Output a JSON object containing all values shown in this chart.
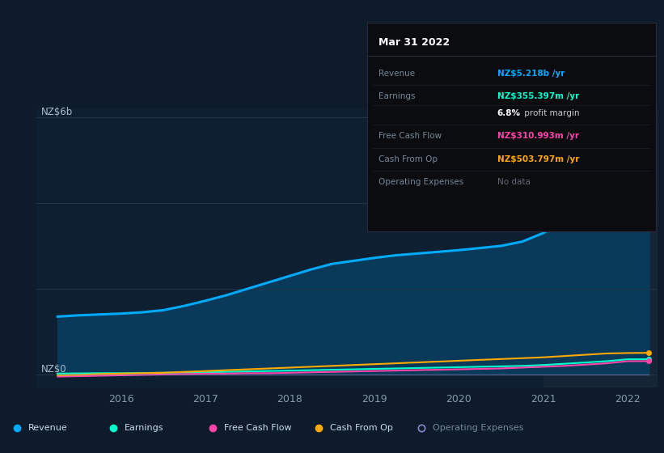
{
  "bg_color": "#0d1b2a",
  "plot_bg_color": "#0d1f30",
  "grid_color": "#1e3448",
  "highlight_bg": "#162535",
  "xlabel_color": "#8899aa",
  "years": [
    2015.25,
    2015.5,
    2015.75,
    2016.0,
    2016.25,
    2016.5,
    2016.75,
    2017.0,
    2017.25,
    2017.5,
    2017.75,
    2018.0,
    2018.25,
    2018.5,
    2018.75,
    2019.0,
    2019.25,
    2019.5,
    2019.75,
    2020.0,
    2020.25,
    2020.5,
    2020.75,
    2021.0,
    2021.25,
    2021.5,
    2021.75,
    2022.0,
    2022.25
  ],
  "revenue": [
    1.35,
    1.38,
    1.4,
    1.42,
    1.45,
    1.5,
    1.6,
    1.72,
    1.85,
    2.0,
    2.15,
    2.3,
    2.45,
    2.58,
    2.65,
    2.72,
    2.78,
    2.82,
    2.86,
    2.9,
    2.95,
    3.0,
    3.1,
    3.3,
    3.6,
    4.1,
    4.7,
    5.2,
    5.218
  ],
  "earnings": [
    0.02,
    0.025,
    0.03,
    0.03,
    0.035,
    0.04,
    0.045,
    0.05,
    0.06,
    0.07,
    0.08,
    0.09,
    0.1,
    0.11,
    0.12,
    0.13,
    0.14,
    0.15,
    0.16,
    0.17,
    0.18,
    0.19,
    0.2,
    0.22,
    0.25,
    0.28,
    0.31,
    0.355,
    0.355
  ],
  "free_cash_flow": [
    -0.05,
    -0.04,
    -0.03,
    -0.02,
    -0.01,
    0.0,
    0.01,
    0.02,
    0.02,
    0.03,
    0.03,
    0.04,
    0.05,
    0.06,
    0.07,
    0.08,
    0.09,
    0.1,
    0.11,
    0.12,
    0.13,
    0.14,
    0.16,
    0.18,
    0.2,
    0.23,
    0.26,
    0.31,
    0.311
  ],
  "cash_from_op": [
    -0.02,
    -0.01,
    0.01,
    0.02,
    0.03,
    0.04,
    0.06,
    0.08,
    0.1,
    0.12,
    0.14,
    0.16,
    0.18,
    0.2,
    0.22,
    0.24,
    0.26,
    0.28,
    0.3,
    0.32,
    0.34,
    0.36,
    0.38,
    0.4,
    0.43,
    0.46,
    0.49,
    0.5,
    0.504
  ],
  "operating_expenses": [
    0.0,
    0.0,
    0.0,
    0.0,
    0.0,
    0.0,
    0.0,
    0.0,
    0.0,
    0.0,
    0.0,
    0.0,
    0.0,
    0.0,
    0.0,
    0.0,
    0.0,
    0.0,
    0.0,
    0.0,
    0.0,
    0.0,
    0.0,
    0.0,
    0.0,
    0.0,
    0.0,
    0.0,
    0.0
  ],
  "revenue_color": "#00aaff",
  "revenue_fill": "#0a3a5a",
  "earnings_color": "#00ffcc",
  "fcf_color": "#ff44aa",
  "cashop_color": "#ffaa00",
  "opex_color": "#8888cc",
  "highlight_start": 2021.0,
  "highlight_end": 2022.35,
  "xmin": 2015.0,
  "xmax": 2022.35,
  "ymin": -0.3,
  "ymax": 6.2,
  "xticks": [
    2016,
    2017,
    2018,
    2019,
    2020,
    2021,
    2022
  ],
  "ytick_labels": [
    "NZ$0",
    "NZ$6b"
  ],
  "tooltip_title": "Mar 31 2022",
  "tooltip_rows": [
    {
      "label": "Revenue",
      "value": "NZ$5.218b /yr",
      "value_color": "#00aaff",
      "bold_part": ""
    },
    {
      "label": "Earnings",
      "value": "NZ$355.397m /yr",
      "value_color": "#00ffcc",
      "bold_part": ""
    },
    {
      "label": "",
      "value": " profit margin",
      "value_color": "#cccccc",
      "bold_part": "6.8%"
    },
    {
      "label": "Free Cash Flow",
      "value": "NZ$310.993m /yr",
      "value_color": "#ff44aa",
      "bold_part": ""
    },
    {
      "label": "Cash From Op",
      "value": "NZ$503.797m /yr",
      "value_color": "#ffaa00",
      "bold_part": ""
    },
    {
      "label": "Operating Expenses",
      "value": "No data",
      "value_color": "#666677",
      "bold_part": ""
    }
  ],
  "legend_items": [
    {
      "label": "Revenue",
      "color": "#00aaff",
      "empty": false
    },
    {
      "label": "Earnings",
      "color": "#00ffcc",
      "empty": false
    },
    {
      "label": "Free Cash Flow",
      "color": "#ff44aa",
      "empty": false
    },
    {
      "label": "Cash From Op",
      "color": "#ffaa00",
      "empty": false
    },
    {
      "label": "Operating Expenses",
      "color": "#8888cc",
      "empty": true
    }
  ]
}
